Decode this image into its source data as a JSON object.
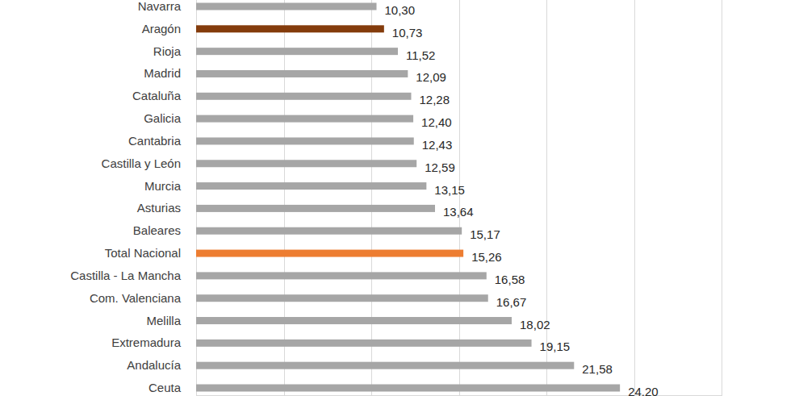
{
  "chart_data": {
    "type": "bar",
    "orientation": "horizontal",
    "categories": [
      "Navarra",
      "Aragón",
      "Rioja",
      "Madrid",
      "Cataluña",
      "Galicia",
      "Cantabria",
      "Castilla y León",
      "Murcia",
      "Asturias",
      "Baleares",
      "Total Nacional",
      "Castilla - La Mancha",
      "Com. Valenciana",
      "Melilla",
      "Extremadura",
      "Andalucía",
      "Ceuta"
    ],
    "values": [
      10.3,
      10.73,
      11.52,
      12.09,
      12.28,
      12.4,
      12.43,
      12.59,
      13.15,
      13.64,
      15.17,
      15.26,
      16.58,
      16.67,
      18.02,
      19.15,
      21.58,
      24.2
    ],
    "value_labels": [
      "10,30",
      "10,73",
      "11,52",
      "12,09",
      "12,28",
      "12,40",
      "12,43",
      "12,59",
      "13,15",
      "13,64",
      "15,17",
      "15,26",
      "16,58",
      "16,67",
      "18,02",
      "19,15",
      "21,58",
      "24,20"
    ],
    "colors": [
      "#a6a6a6",
      "#843c0c",
      "#a6a6a6",
      "#a6a6a6",
      "#a6a6a6",
      "#a6a6a6",
      "#a6a6a6",
      "#a6a6a6",
      "#a6a6a6",
      "#a6a6a6",
      "#a6a6a6",
      "#ed7d31",
      "#a6a6a6",
      "#a6a6a6",
      "#a6a6a6",
      "#a6a6a6",
      "#a6a6a6",
      "#a6a6a6"
    ],
    "xlim": [
      0,
      30
    ],
    "xticks": [
      0,
      5,
      10,
      15,
      20,
      25,
      30
    ],
    "grid": true,
    "data_labels": true,
    "tick_labels": false
  }
}
